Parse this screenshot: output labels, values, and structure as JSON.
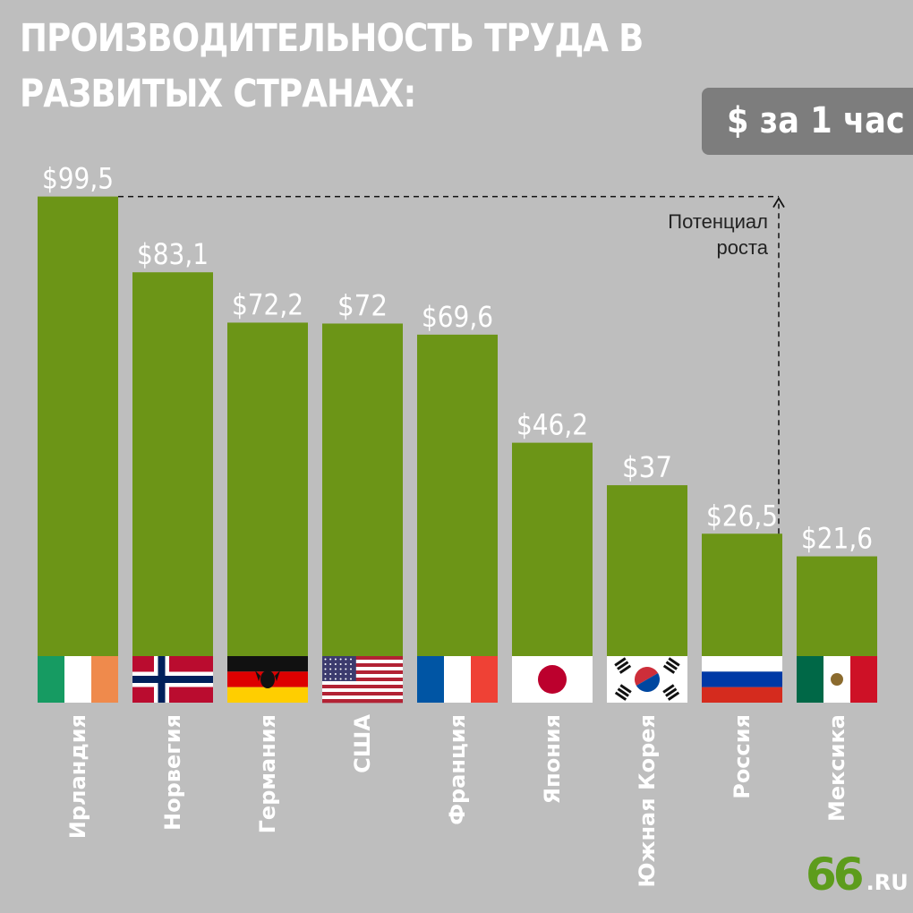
{
  "title": "ПРОИЗВОДИТЕЛЬНОСТЬ ТРУДА В РАЗВИТЫХ СТРАНАХ:",
  "unit_label": "$ за 1 час",
  "annotation": "Потенциал роста",
  "logo": {
    "number": "66",
    "suffix": ".RU"
  },
  "colors": {
    "bar": "#6c9517",
    "background": "#bebebe",
    "label": "#ffffff"
  },
  "chart_data": {
    "type": "bar",
    "title": "ПРОИЗВОДИТЕЛЬНОСТЬ ТРУДА В РАЗВИТЫХ СТРАНАХ:",
    "ylabel": "$ за 1 час",
    "xlabel": "",
    "ylim": [
      0,
      99.5
    ],
    "grid": false,
    "categories": [
      "Ирландия",
      "Норвегия",
      "Германия",
      "США",
      "Франция",
      "Япония",
      "Южная Корея",
      "Россия",
      "Мексика"
    ],
    "values": [
      99.5,
      83.1,
      72.2,
      72,
      69.6,
      46.2,
      37,
      26.5,
      21.6
    ],
    "value_labels": [
      "$99,5",
      "$83,1",
      "$72,2",
      "$72",
      "$69,6",
      "$46,2",
      "$37",
      "$26,5",
      "$21,6"
    ],
    "flags": [
      "ireland-flag",
      "norway-flag",
      "germany-flag",
      "usa-flag",
      "france-flag",
      "japan-flag",
      "south-korea-flag",
      "russia-flag",
      "mexico-flag"
    ]
  }
}
